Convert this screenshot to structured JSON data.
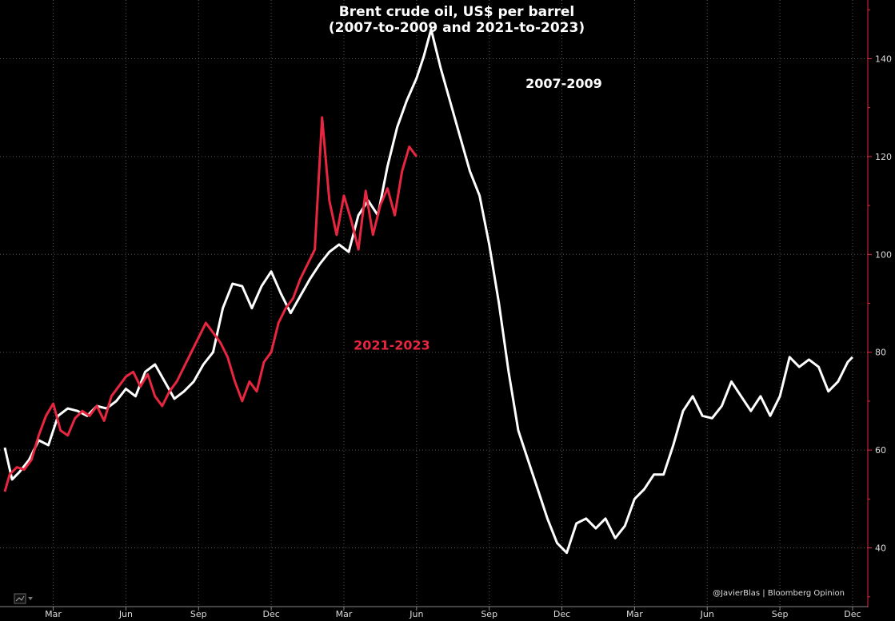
{
  "chart_data": {
    "type": "line",
    "title_line1": "Brent crude oil, US$ per barrel",
    "title_line2": "(2007-to-2009 and 2021-to-2023)",
    "xlabel": "",
    "ylabel": "",
    "ylim": [
      28,
      152
    ],
    "y_ticks": [
      40,
      60,
      80,
      100,
      120,
      140
    ],
    "x_tick_labels": [
      "Mar",
      "Jun",
      "Sep",
      "Dec",
      "Mar",
      "Jun",
      "Sep",
      "Dec",
      "Mar",
      "Jun",
      "Sep",
      "Dec"
    ],
    "x_tick_months": [
      2,
      5,
      8,
      11,
      14,
      17,
      20,
      23,
      26,
      29,
      32,
      35
    ],
    "xlim_months": [
      0,
      35.2
    ],
    "grid": true,
    "colors": {
      "series_2007": "#ffffff",
      "series_2021": "#e8263f",
      "axis": "#e8263f",
      "grid": "#555555"
    },
    "series": [
      {
        "name": "2007-2009",
        "color": "#ffffff",
        "x_months": [
          0.0,
          0.3,
          0.6,
          1.0,
          1.4,
          1.8,
          2.2,
          2.6,
          3.0,
          3.4,
          3.8,
          4.2,
          4.6,
          5.0,
          5.4,
          5.8,
          6.2,
          6.6,
          7.0,
          7.4,
          7.8,
          8.2,
          8.6,
          9.0,
          9.4,
          9.8,
          10.2,
          10.6,
          11.0,
          11.4,
          11.8,
          12.2,
          12.6,
          13.0,
          13.4,
          13.8,
          14.2,
          14.6,
          15.0,
          15.4,
          15.8,
          16.2,
          16.6,
          17.0,
          17.3,
          17.6,
          18.0,
          18.4,
          18.8,
          19.2,
          19.6,
          20.0,
          20.4,
          20.8,
          21.2,
          21.6,
          22.0,
          22.4,
          22.8,
          23.2,
          23.6,
          24.0,
          24.4,
          24.8,
          25.2,
          25.6,
          26.0,
          26.4,
          26.8,
          27.2,
          27.6,
          28.0,
          28.4,
          28.8,
          29.2,
          29.6,
          30.0,
          30.4,
          30.8,
          31.2,
          31.6,
          32.0,
          32.4,
          32.8,
          33.2,
          33.6,
          34.0,
          34.4,
          34.8,
          35.0
        ],
        "values": [
          60.5,
          54.0,
          55.5,
          58.0,
          62.0,
          61.0,
          67.0,
          68.5,
          68.0,
          67.0,
          69.0,
          68.5,
          70.0,
          72.5,
          71.0,
          76.0,
          77.5,
          74.0,
          70.5,
          72.0,
          74.0,
          77.5,
          80.0,
          89.0,
          94.0,
          93.5,
          89.0,
          93.5,
          96.5,
          92.0,
          88.0,
          91.5,
          95.0,
          98.0,
          100.5,
          102.0,
          100.5,
          108.0,
          111.0,
          108.0,
          118.0,
          126.0,
          131.5,
          136.0,
          140.5,
          146.0,
          138.0,
          131.0,
          124.0,
          117.0,
          112.0,
          102.0,
          90.0,
          76.0,
          64.0,
          58.0,
          52.0,
          46.0,
          41.0,
          39.0,
          45.0,
          46.0,
          44.0,
          46.0,
          42.0,
          44.5,
          50.0,
          52.0,
          55.0,
          55.0,
          61.0,
          68.0,
          71.0,
          67.0,
          66.5,
          69.0,
          74.0,
          71.0,
          68.0,
          71.0,
          67.0,
          71.0,
          79.0,
          77.0,
          78.5,
          77.0,
          72.0,
          74.0,
          78.0,
          79.0
        ]
      },
      {
        "name": "2021-2023",
        "color": "#e8263f",
        "x_months": [
          0.0,
          0.2,
          0.5,
          0.8,
          1.1,
          1.4,
          1.7,
          2.0,
          2.3,
          2.6,
          2.9,
          3.2,
          3.5,
          3.8,
          4.1,
          4.4,
          4.7,
          5.0,
          5.3,
          5.6,
          5.9,
          6.2,
          6.5,
          6.8,
          7.1,
          7.4,
          7.7,
          8.0,
          8.3,
          8.6,
          8.9,
          9.2,
          9.5,
          9.8,
          10.1,
          10.4,
          10.7,
          11.0,
          11.3,
          11.6,
          11.9,
          12.2,
          12.5,
          12.8,
          13.1,
          13.4,
          13.7,
          14.0,
          14.3,
          14.6,
          14.9,
          15.2,
          15.5,
          15.8,
          16.1,
          16.4,
          16.7,
          17.0
        ],
        "values": [
          51.5,
          55.0,
          56.5,
          56.0,
          58.0,
          63.0,
          67.0,
          69.5,
          64.0,
          63.0,
          66.5,
          68.0,
          67.0,
          69.0,
          66.0,
          71.0,
          73.0,
          75.0,
          76.0,
          73.0,
          75.5,
          71.0,
          69.0,
          72.0,
          74.0,
          77.0,
          80.0,
          83.0,
          86.0,
          84.0,
          82.0,
          79.0,
          74.0,
          70.0,
          74.0,
          72.0,
          78.0,
          80.0,
          86.0,
          89.0,
          91.0,
          95.0,
          98.0,
          101.0,
          128.0,
          111.0,
          104.0,
          112.0,
          107.0,
          101.0,
          113.0,
          104.0,
          110.0,
          113.5,
          108.0,
          117.0,
          122.0,
          120.0
        ]
      }
    ],
    "annotations": [
      {
        "text": "2007-2009",
        "x_month": 21.5,
        "y_value": 134,
        "color": "#ffffff"
      },
      {
        "text": "2021-2023",
        "x_month": 14.4,
        "y_value": 80.5,
        "color": "#e8263f"
      }
    ],
    "credit": "@JavierBlas | Bloomberg Opinion"
  }
}
